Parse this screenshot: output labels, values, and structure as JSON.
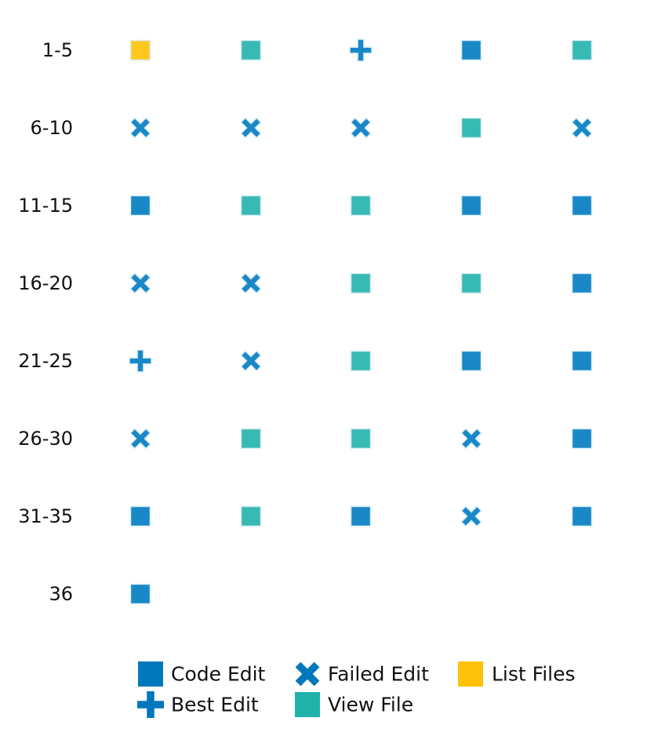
{
  "chart_data": {
    "type": "scatter",
    "columns": 5,
    "rows": [
      {
        "label": "1-5",
        "steps": [
          "list_files",
          "view_file",
          "best_edit",
          "code_edit",
          "view_file"
        ]
      },
      {
        "label": "6-10",
        "steps": [
          "failed_edit",
          "failed_edit",
          "failed_edit",
          "view_file",
          "failed_edit"
        ]
      },
      {
        "label": "11-15",
        "steps": [
          "code_edit",
          "view_file",
          "view_file",
          "code_edit",
          "code_edit"
        ]
      },
      {
        "label": "16-20",
        "steps": [
          "failed_edit",
          "failed_edit",
          "view_file",
          "view_file",
          "code_edit"
        ]
      },
      {
        "label": "21-25",
        "steps": [
          "best_edit",
          "failed_edit",
          "view_file",
          "code_edit",
          "code_edit"
        ]
      },
      {
        "label": "26-30",
        "steps": [
          "failed_edit",
          "view_file",
          "view_file",
          "failed_edit",
          "code_edit"
        ]
      },
      {
        "label": "31-35",
        "steps": [
          "code_edit",
          "view_file",
          "code_edit",
          "failed_edit",
          "code_edit"
        ]
      },
      {
        "label": "36",
        "steps": [
          "code_edit"
        ]
      }
    ],
    "legend": [
      {
        "key": "code_edit",
        "label": "Code Edit",
        "shape": "square",
        "color": "#0077bb"
      },
      {
        "key": "failed_edit",
        "label": "Failed Edit",
        "shape": "x",
        "color": "#0077bb"
      },
      {
        "key": "list_files",
        "label": "List Files",
        "shape": "square",
        "color": "#ffc20a"
      },
      {
        "key": "best_edit",
        "label": "Best Edit",
        "shape": "plus",
        "color": "#0077bb"
      },
      {
        "key": "view_file",
        "label": "View File",
        "shape": "square",
        "color": "#20b2aa"
      }
    ],
    "marker_colors": {
      "code_edit": "#1a88c7",
      "failed_edit": "#1a88c7",
      "best_edit": "#1a88c7",
      "view_file": "#37bab3",
      "list_files": "#ffc81f"
    },
    "legend_placement": "bottom",
    "grid": false
  }
}
